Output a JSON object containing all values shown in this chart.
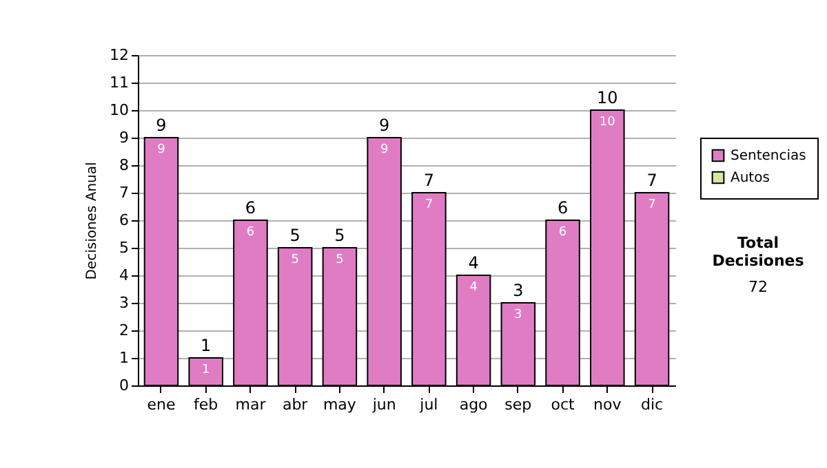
{
  "chart_data": {
    "type": "bar",
    "stacked": true,
    "ylabel": "Decisiones Anual",
    "categories": [
      "ene",
      "feb",
      "mar",
      "abr",
      "may",
      "jun",
      "jul",
      "ago",
      "sep",
      "oct",
      "nov",
      "dic"
    ],
    "series": [
      {
        "name": "Sentencias",
        "color": "#e07cc4",
        "values": [
          9,
          1,
          6,
          5,
          5,
          9,
          7,
          4,
          3,
          6,
          10,
          7
        ],
        "value_labels": [
          "9",
          "1",
          "6",
          "5",
          "5",
          "9",
          "7",
          "4",
          "3",
          "6",
          "10",
          "7"
        ]
      },
      {
        "name": "Autos",
        "color": "#d4e8a0",
        "values": [
          0,
          0,
          0,
          0,
          0,
          0,
          0,
          0,
          0,
          0,
          0,
          0
        ]
      }
    ],
    "totals": [
      "9",
      "1",
      "6",
      "5",
      "5",
      "9",
      "7",
      "4",
      "3",
      "6",
      "10",
      "7"
    ],
    "ylim": [
      0,
      12
    ],
    "yticks": [
      0,
      1,
      2,
      3,
      4,
      5,
      6,
      7,
      8,
      9,
      10,
      11,
      12
    ],
    "grid": "y",
    "legend": "right",
    "annotations": [
      "Total Decisiones",
      "72"
    ]
  }
}
